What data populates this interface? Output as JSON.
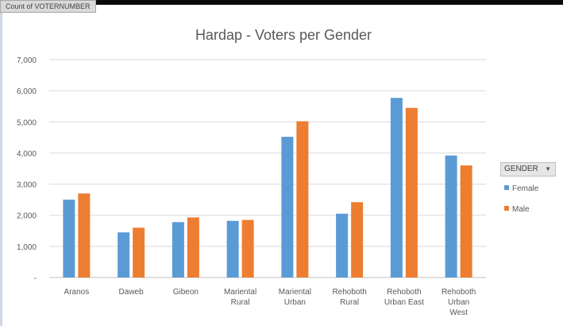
{
  "field_button_label": "Count of VOTERNUMBER",
  "legend": {
    "title": "GENDER",
    "dropdown_icon": "filter-dropdown-icon"
  },
  "colors": {
    "female": "#5b9bd5",
    "male": "#ed7d31",
    "grid": "#d9d9d9",
    "axis": "#bfbfbf"
  },
  "chart_data": {
    "type": "bar",
    "title": "Hardap - Voters per Gender",
    "xlabel": "",
    "ylabel": "",
    "ylim": [
      0,
      7000
    ],
    "yticks": [
      0,
      1000,
      2000,
      3000,
      4000,
      5000,
      6000,
      7000
    ],
    "ytick_labels": [
      "-",
      "1,000",
      "2,000",
      "3,000",
      "4,000",
      "5,000",
      "6,000",
      "7,000"
    ],
    "grid": true,
    "legend_position": "right",
    "categories": [
      [
        "Aranos"
      ],
      [
        "Daweb"
      ],
      [
        "Gibeon"
      ],
      [
        "Mariental",
        "Rural"
      ],
      [
        "Mariental",
        "Urban"
      ],
      [
        "Rehoboth",
        "Rural"
      ],
      [
        "Rehoboth",
        "Urban East"
      ],
      [
        "Rehoboth",
        "Urban",
        "West"
      ]
    ],
    "series": [
      {
        "name": "Female",
        "values": [
          2500,
          1450,
          1780,
          1820,
          4520,
          2050,
          5770,
          3920
        ]
      },
      {
        "name": "Male",
        "values": [
          2700,
          1600,
          1930,
          1850,
          5020,
          2420,
          5450,
          3600
        ]
      }
    ]
  }
}
